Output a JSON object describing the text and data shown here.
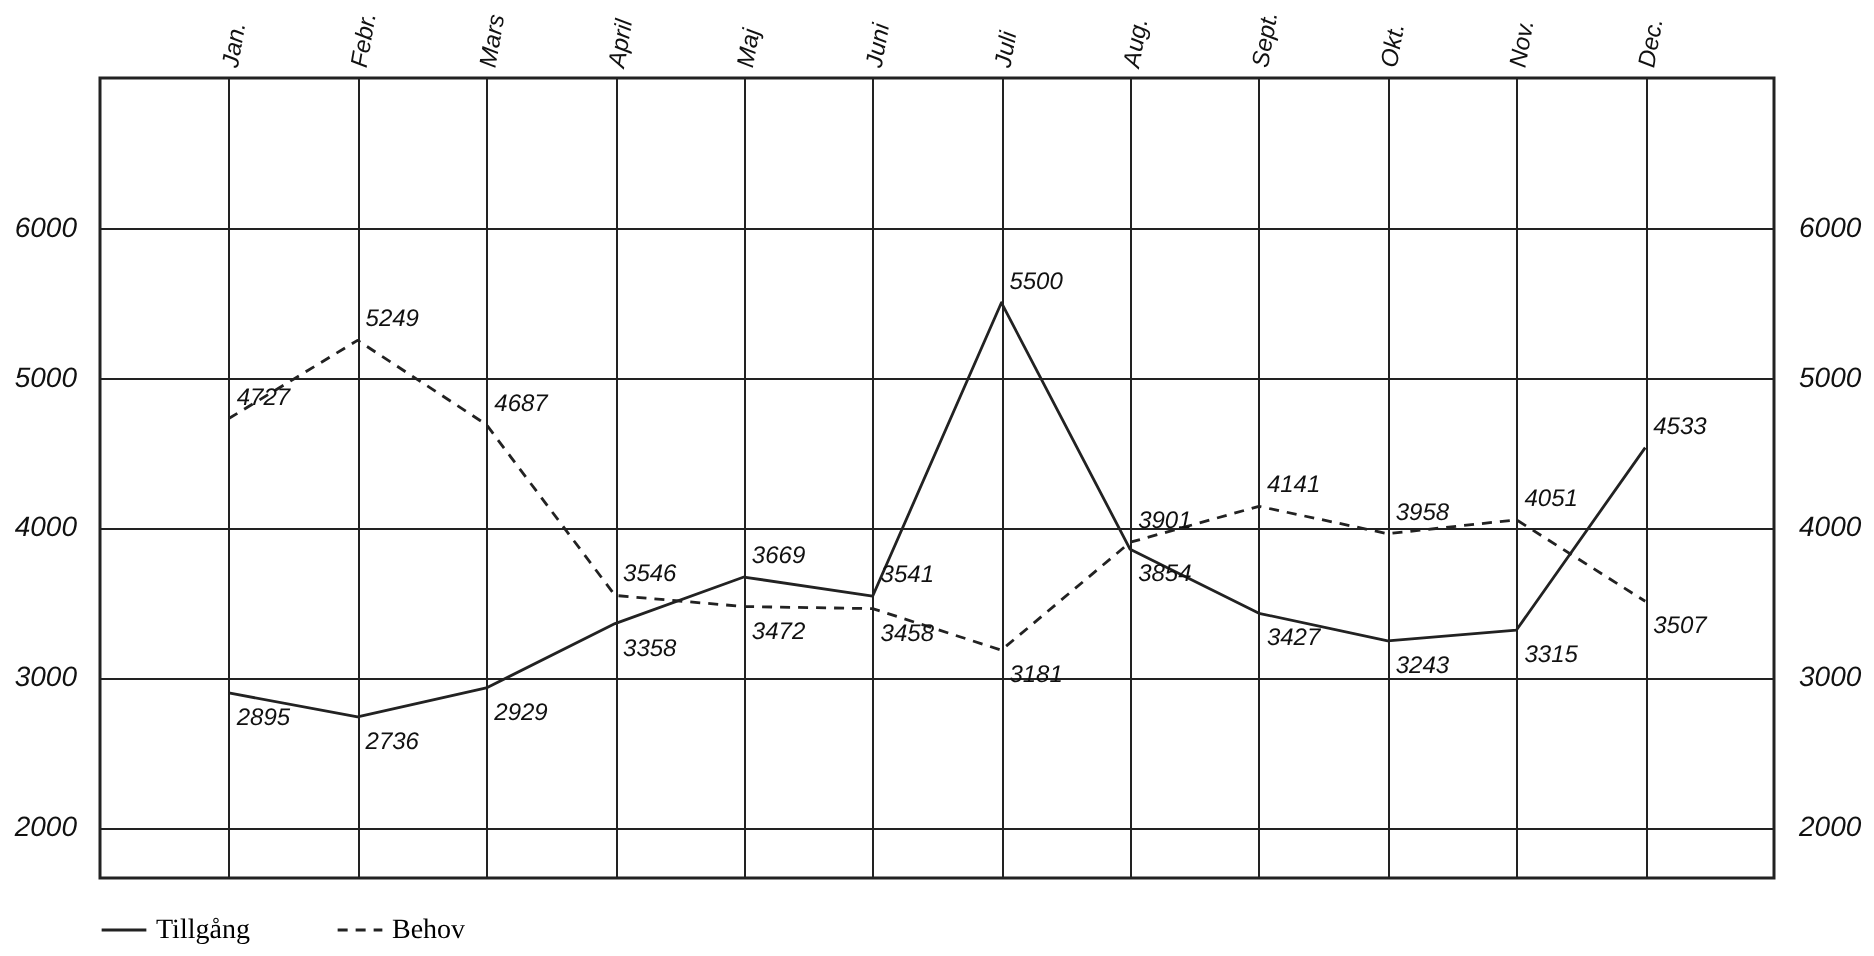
{
  "chart_data": {
    "type": "line",
    "categories": [
      "Jan.",
      "Febr.",
      "Mars",
      "April",
      "Maj",
      "Juni",
      "Juli",
      "Aug.",
      "Sept.",
      "Okt.",
      "Nov.",
      "Dec."
    ],
    "series": [
      {
        "name": "Tillgång",
        "color": "#222222",
        "line_style": "solid",
        "values": [
          2895,
          2736,
          2929,
          3358,
          3669,
          3541,
          5500,
          3854,
          3427,
          3243,
          3315,
          4533
        ]
      },
      {
        "name": "Behov",
        "color": "#222222",
        "line_style": "dashed",
        "values": [
          4727,
          5249,
          4687,
          3546,
          3472,
          3458,
          3181,
          3901,
          4141,
          3958,
          4051,
          3507
        ]
      }
    ],
    "ylim": [
      1660,
      7000
    ],
    "yticks": [
      2000,
      3000,
      4000,
      5000,
      6000
    ],
    "y2lim": [
      1660,
      7000
    ],
    "y2ticks": [
      2000,
      3000,
      4000,
      5000,
      6000
    ],
    "grid": true,
    "legend": "bottom",
    "marker": "none",
    "data_labels": true
  }
}
